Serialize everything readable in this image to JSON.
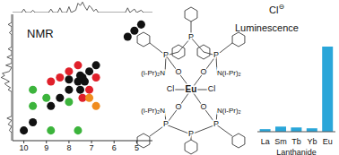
{
  "chart_data": [
    {
      "type": "scatter",
      "title": "NMR",
      "xlim": [
        10.5,
        4.3
      ],
      "ylim": [
        10.5,
        4.3
      ],
      "xticks": [
        10,
        9,
        8,
        7,
        6,
        5
      ],
      "tick_labels": "x",
      "series": [
        {
          "color": "#111111",
          "x": [
            10.0,
            9.6,
            8.8,
            8.4,
            8.0,
            7.6,
            7.4,
            7.1,
            6.8,
            5.4,
            5.1,
            4.8,
            7.5,
            7.3,
            8.0,
            7.5
          ],
          "y": [
            10.0,
            9.6,
            8.8,
            8.4,
            8.0,
            7.6,
            7.4,
            7.1,
            6.8,
            5.4,
            5.1,
            4.8,
            7.3,
            7.6,
            7.5,
            8.0
          ]
        },
        {
          "color": "#e0202a",
          "x": [
            8.4,
            7.4,
            8.0,
            7.1,
            6.8,
            7.6,
            8.8
          ],
          "y": [
            7.4,
            8.4,
            7.1,
            8.0,
            7.4,
            6.8,
            7.6
          ]
        },
        {
          "color": "#3cb43c",
          "x": [
            9.6,
            9.0,
            8.0,
            7.6,
            9.6,
            8.8
          ],
          "y": [
            8.0,
            8.4,
            8.6,
            10.0,
            8.8,
            10.0
          ]
        },
        {
          "color": "#f08c1e",
          "x": [
            6.8,
            7.1
          ],
          "y": [
            8.8,
            8.4
          ]
        }
      ]
    },
    {
      "type": "line",
      "x": [
        10.5,
        10.1,
        10.0,
        9.9,
        9.7,
        9.6,
        9.5,
        8.9,
        8.8,
        8.7,
        8.5,
        8.4,
        8.3,
        8.1,
        8.0,
        7.9,
        7.7,
        7.6,
        7.5,
        7.4,
        7.3,
        7.2,
        7.1,
        7.0,
        6.9,
        6.8,
        6.7,
        5.5,
        5.4,
        5.3,
        5.1,
        5.0,
        4.8,
        4.7,
        4.3
      ],
      "values": [
        0,
        0,
        3,
        0,
        0,
        2,
        0,
        0,
        3,
        0,
        0,
        4,
        0,
        0,
        5,
        0,
        2,
        8,
        6,
        9,
        5,
        2,
        6,
        4,
        1,
        3,
        0,
        0,
        4,
        0,
        3,
        0,
        2,
        0,
        0
      ],
      "xlim": [
        10.5,
        4.3
      ],
      "ylim": [
        0,
        10
      ],
      "tick_labels": false,
      "color": "#333333"
    },
    {
      "type": "bar",
      "title": "Luminescence",
      "x_label": "Lanthanide",
      "categories": [
        "La",
        "Sm",
        "Tb",
        "Yb",
        "Eu"
      ],
      "values": [
        3,
        6,
        5,
        4,
        100
      ],
      "ylim": [
        0,
        100
      ],
      "color": "#2aa6d9",
      "tick_labels": "x"
    }
  ],
  "structure": {
    "center": "Eu",
    "halides": [
      "Cl",
      "Cl"
    ],
    "oxygens": [
      "O",
      "O",
      "O",
      "O"
    ],
    "phosphorus": [
      "P",
      "P",
      "P",
      "P",
      "P",
      "P"
    ],
    "amines_left": [
      "(i-Pr)₂N",
      "(i-Pr)₂N"
    ],
    "amines_right": [
      "N(i-Pr)₂",
      "N(i-Pr)₂"
    ],
    "counterion": "Cl",
    "charge": "⊖"
  }
}
